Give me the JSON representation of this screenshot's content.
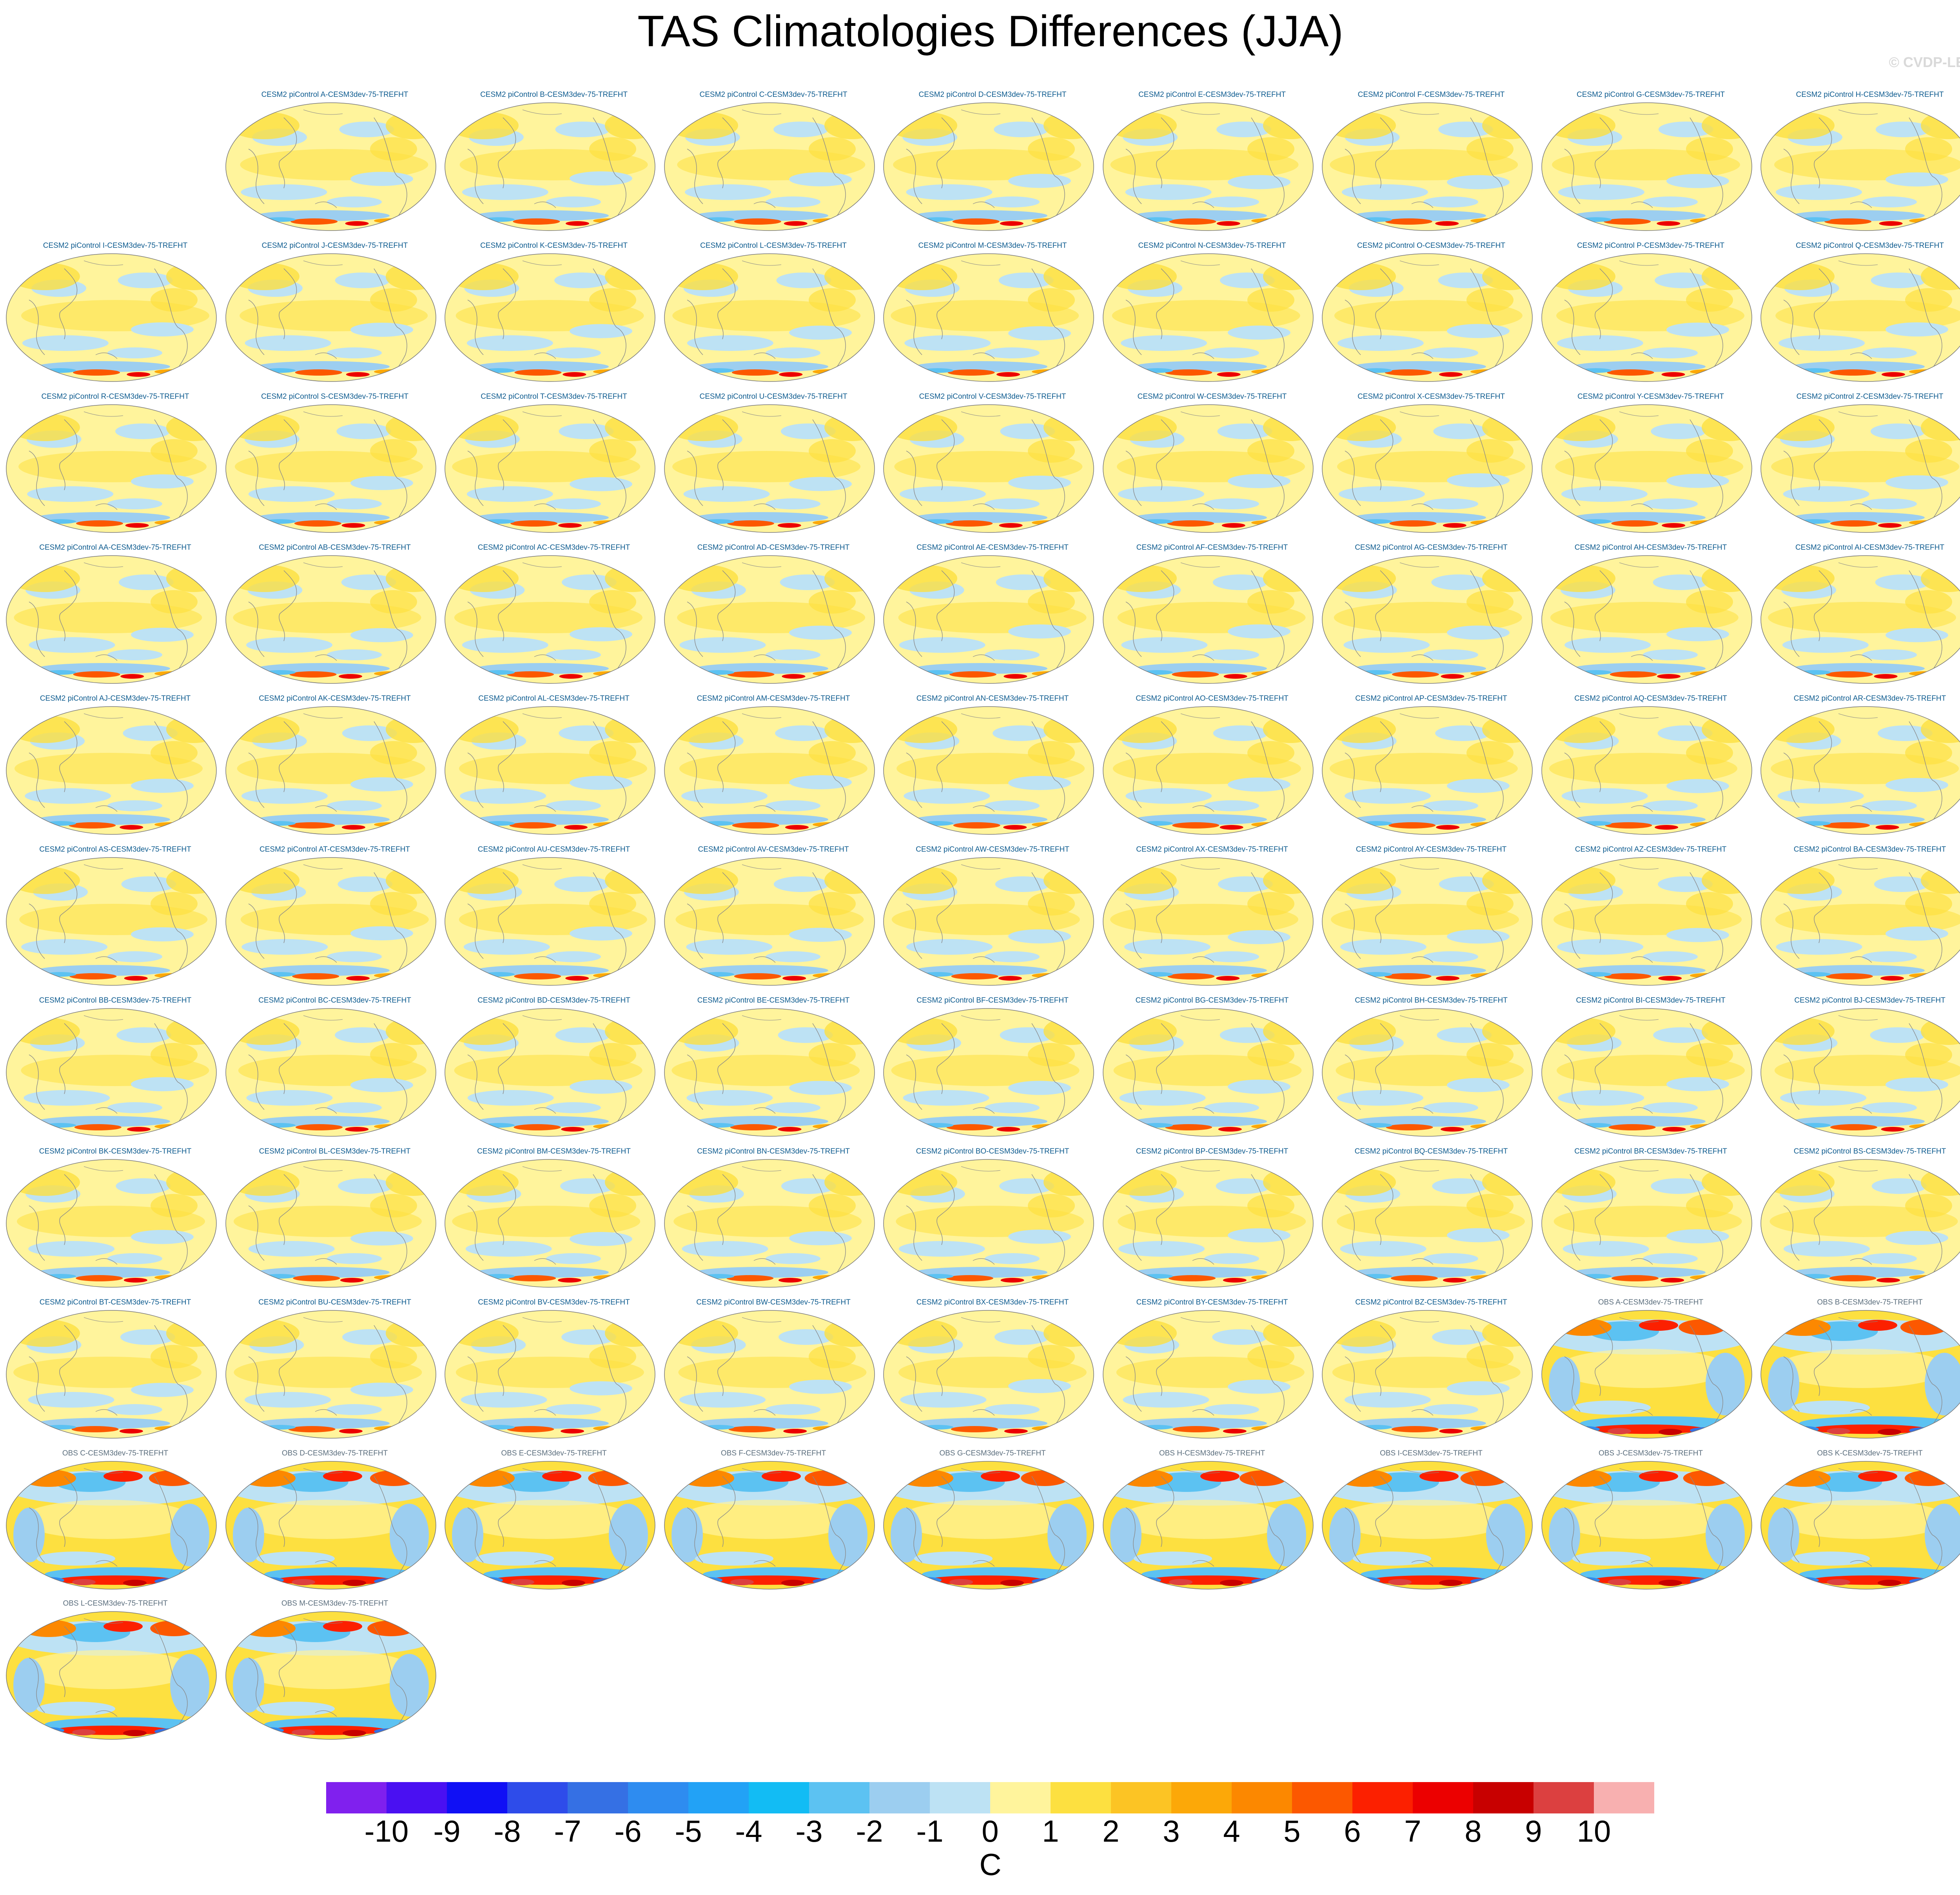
{
  "title": "TAS Climatologies Differences (JJA)",
  "credit": "© CVDP-LE",
  "units": "C",
  "colors": {
    "palette": [
      "#8020ee",
      "#4a10f2",
      "#1010f5",
      "#2e4cea",
      "#3570e4",
      "#2e8cf0",
      "#22a2f6",
      "#12bcf4",
      "#5cc2f2",
      "#9ccef0",
      "#bde2f4",
      "#fff49c",
      "#fde040",
      "#fcc424",
      "#fca808",
      "#fc8800",
      "#fc5800",
      "#fc2000",
      "#ec0000",
      "#c80000",
      "#dc4040",
      "#f8b0b0"
    ],
    "ocean_ice": "#bde2f4",
    "coast": "#8a8a8a"
  },
  "colorbar_labels": [
    "-10",
    "-9",
    "-8",
    "-7",
    "-6",
    "-5",
    "-4",
    "-3",
    "-2",
    "-1",
    "0",
    "1",
    "2",
    "3",
    "4",
    "5",
    "6",
    "7",
    "8",
    "9",
    "10"
  ],
  "panel_titles": [
    "CESM2 piControl A-CESM3dev-75-TREFHT",
    "CESM2 piControl B-CESM3dev-75-TREFHT",
    "CESM2 piControl C-CESM3dev-75-TREFHT",
    "CESM2 piControl D-CESM3dev-75-TREFHT",
    "CESM2 piControl E-CESM3dev-75-TREFHT",
    "CESM2 piControl F-CESM3dev-75-TREFHT",
    "CESM2 piControl G-CESM3dev-75-TREFHT",
    "CESM2 piControl H-CESM3dev-75-TREFHT",
    "CESM2 piControl I-CESM3dev-75-TREFHT",
    "CESM2 piControl J-CESM3dev-75-TREFHT",
    "CESM2 piControl K-CESM3dev-75-TREFHT",
    "CESM2 piControl L-CESM3dev-75-TREFHT",
    "CESM2 piControl M-CESM3dev-75-TREFHT",
    "CESM2 piControl N-CESM3dev-75-TREFHT",
    "CESM2 piControl O-CESM3dev-75-TREFHT",
    "CESM2 piControl P-CESM3dev-75-TREFHT",
    "CESM2 piControl Q-CESM3dev-75-TREFHT",
    "CESM2 piControl R-CESM3dev-75-TREFHT",
    "CESM2 piControl S-CESM3dev-75-TREFHT",
    "CESM2 piControl T-CESM3dev-75-TREFHT",
    "CESM2 piControl U-CESM3dev-75-TREFHT",
    "CESM2 piControl V-CESM3dev-75-TREFHT",
    "CESM2 piControl W-CESM3dev-75-TREFHT",
    "CESM2 piControl X-CESM3dev-75-TREFHT",
    "CESM2 piControl Y-CESM3dev-75-TREFHT",
    "CESM2 piControl Z-CESM3dev-75-TREFHT",
    "CESM2 piControl AA-CESM3dev-75-TREFHT",
    "CESM2 piControl AB-CESM3dev-75-TREFHT",
    "CESM2 piControl AC-CESM3dev-75-TREFHT",
    "CESM2 piControl AD-CESM3dev-75-TREFHT",
    "CESM2 piControl AE-CESM3dev-75-TREFHT",
    "CESM2 piControl AF-CESM3dev-75-TREFHT",
    "CESM2 piControl AG-CESM3dev-75-TREFHT",
    "CESM2 piControl AH-CESM3dev-75-TREFHT",
    "CESM2 piControl AI-CESM3dev-75-TREFHT",
    "CESM2 piControl AJ-CESM3dev-75-TREFHT",
    "CESM2 piControl AK-CESM3dev-75-TREFHT",
    "CESM2 piControl AL-CESM3dev-75-TREFHT",
    "CESM2 piControl AM-CESM3dev-75-TREFHT",
    "CESM2 piControl AN-CESM3dev-75-TREFHT",
    "CESM2 piControl AO-CESM3dev-75-TREFHT",
    "CESM2 piControl AP-CESM3dev-75-TREFHT",
    "CESM2 piControl AQ-CESM3dev-75-TREFHT",
    "CESM2 piControl AR-CESM3dev-75-TREFHT",
    "CESM2 piControl AS-CESM3dev-75-TREFHT",
    "CESM2 piControl AT-CESM3dev-75-TREFHT",
    "CESM2 piControl AU-CESM3dev-75-TREFHT",
    "CESM2 piControl AV-CESM3dev-75-TREFHT",
    "CESM2 piControl AW-CESM3dev-75-TREFHT",
    "CESM2 piControl AX-CESM3dev-75-TREFHT",
    "CESM2 piControl AY-CESM3dev-75-TREFHT",
    "CESM2 piControl AZ-CESM3dev-75-TREFHT",
    "CESM2 piControl BA-CESM3dev-75-TREFHT",
    "CESM2 piControl BB-CESM3dev-75-TREFHT",
    "CESM2 piControl BC-CESM3dev-75-TREFHT",
    "CESM2 piControl BD-CESM3dev-75-TREFHT",
    "CESM2 piControl BE-CESM3dev-75-TREFHT",
    "CESM2 piControl BF-CESM3dev-75-TREFHT",
    "CESM2 piControl BG-CESM3dev-75-TREFHT",
    "CESM2 piControl BH-CESM3dev-75-TREFHT",
    "CESM2 piControl BI-CESM3dev-75-TREFHT",
    "CESM2 piControl BJ-CESM3dev-75-TREFHT",
    "CESM2 piControl BK-CESM3dev-75-TREFHT",
    "CESM2 piControl BL-CESM3dev-75-TREFHT",
    "CESM2 piControl BM-CESM3dev-75-TREFHT",
    "CESM2 piControl BN-CESM3dev-75-TREFHT",
    "CESM2 piControl BO-CESM3dev-75-TREFHT",
    "CESM2 piControl BP-CESM3dev-75-TREFHT",
    "CESM2 piControl BQ-CESM3dev-75-TREFHT",
    "CESM2 piControl BR-CESM3dev-75-TREFHT",
    "CESM2 piControl BS-CESM3dev-75-TREFHT",
    "CESM2 piControl BT-CESM3dev-75-TREFHT",
    "CESM2 piControl BU-CESM3dev-75-TREFHT",
    "CESM2 piControl BV-CESM3dev-75-TREFHT",
    "CESM2 piControl BW-CESM3dev-75-TREFHT",
    "CESM2 piControl BX-CESM3dev-75-TREFHT",
    "CESM2 piControl BY-CESM3dev-75-TREFHT",
    "CESM2 piControl BZ-CESM3dev-75-TREFHT",
    "OBS A-CESM3dev-75-TREFHT",
    "OBS B-CESM3dev-75-TREFHT",
    "OBS C-CESM3dev-75-TREFHT",
    "OBS D-CESM3dev-75-TREFHT",
    "OBS E-CESM3dev-75-TREFHT",
    "OBS F-CESM3dev-75-TREFHT",
    "OBS G-CESM3dev-75-TREFHT",
    "OBS H-CESM3dev-75-TREFHT",
    "OBS I-CESM3dev-75-TREFHT",
    "OBS J-CESM3dev-75-TREFHT",
    "OBS K-CESM3dev-75-TREFHT",
    "OBS L-CESM3dev-75-TREFHT",
    "OBS M-CESM3dev-75-TREFHT"
  ]
}
